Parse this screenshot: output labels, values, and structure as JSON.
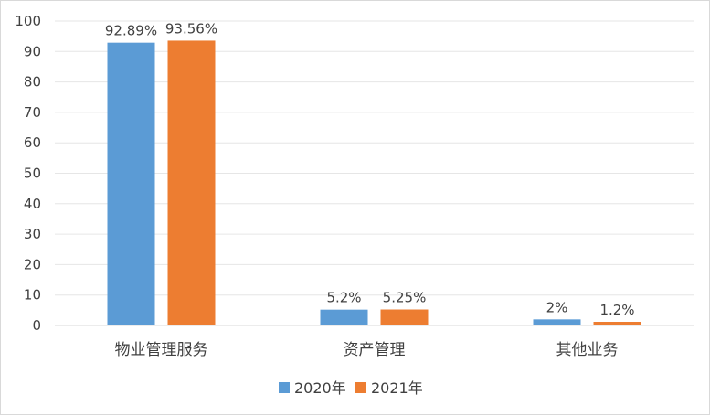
{
  "chart_data": {
    "type": "bar",
    "categories": [
      "物业管理服务",
      "资产管理",
      "其他业务"
    ],
    "series": [
      {
        "name": "2020年",
        "values": [
          92.89,
          5.2,
          2
        ],
        "labels": [
          "92.89%",
          "5.2%",
          "2%"
        ],
        "color": "#5b9bd5"
      },
      {
        "name": "2021年",
        "values": [
          93.56,
          5.25,
          1.2
        ],
        "labels": [
          "93.56%",
          "5.25%",
          "1.2%"
        ],
        "color": "#ed7d31"
      }
    ],
    "ylim": [
      0,
      100
    ],
    "yticks": [
      0,
      10,
      20,
      30,
      40,
      50,
      60,
      70,
      80,
      90,
      100
    ],
    "grid": true,
    "legend_position": "bottom",
    "title": "",
    "xlabel": "",
    "ylabel": ""
  }
}
